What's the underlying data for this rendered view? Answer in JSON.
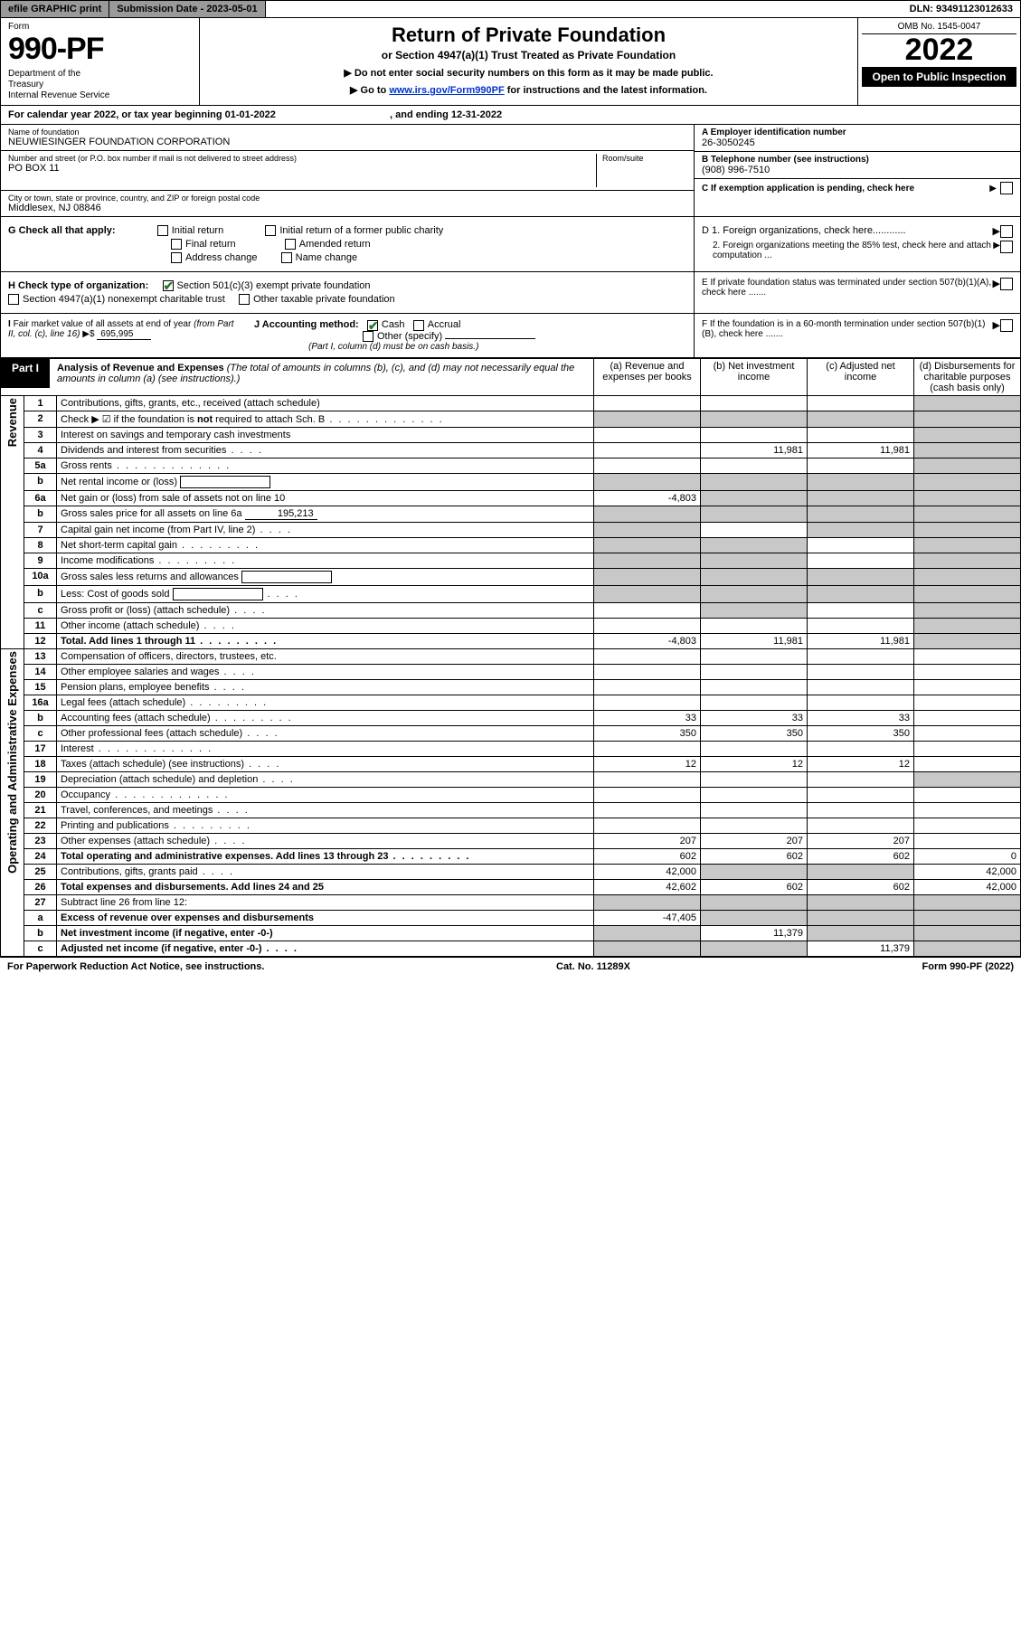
{
  "topbar": {
    "efile": "efile GRAPHIC print",
    "sub_label": "Submission Date - 2023-05-01",
    "dln": "DLN: 93491123012633"
  },
  "header": {
    "form_word": "Form",
    "form_no": "990-PF",
    "dept": "Department of the Treasury\nInternal Revenue Service",
    "title": "Return of Private Foundation",
    "subtitle": "or Section 4947(a)(1) Trust Treated as Private Foundation",
    "instr1": "▶ Do not enter social security numbers on this form as it may be made public.",
    "instr2_pre": "▶ Go to ",
    "instr2_link": "www.irs.gov/Form990PF",
    "instr2_post": " for instructions and the latest information.",
    "omb": "OMB No. 1545-0047",
    "year": "2022",
    "open": "Open to Public Inspection"
  },
  "calyear": {
    "text_a": "For calendar year 2022, or tax year beginning 01-01-2022",
    "text_b": ", and ending 12-31-2022"
  },
  "ident": {
    "name_lbl": "Name of foundation",
    "name_val": "NEUWIESINGER FOUNDATION CORPORATION",
    "addr_lbl": "Number and street (or P.O. box number if mail is not delivered to street address)",
    "addr_val": "PO BOX 11",
    "room_lbl": "Room/suite",
    "city_lbl": "City or town, state or province, country, and ZIP or foreign postal code",
    "city_val": "Middlesex, NJ  08846",
    "a_lbl": "A Employer identification number",
    "a_val": "26-3050245",
    "b_lbl": "B Telephone number (see instructions)",
    "b_val": "(908) 996-7510",
    "c_lbl": "C If exemption application is pending, check here"
  },
  "g": {
    "label": "G Check all that apply:",
    "opts": [
      "Initial return",
      "Final return",
      "Address change",
      "Initial return of a former public charity",
      "Amended return",
      "Name change"
    ]
  },
  "d": {
    "d1": "D 1. Foreign organizations, check here............",
    "d2": "2. Foreign organizations meeting the 85% test, check here and attach computation ...",
    "e": "E  If private foundation status was terminated under section 507(b)(1)(A), check here .......",
    "f": "F  If the foundation is in a 60-month termination under section 507(b)(1)(B), check here ......."
  },
  "h": {
    "label": "H Check type of organization:",
    "o1": "Section 501(c)(3) exempt private foundation",
    "o2": "Section 4947(a)(1) nonexempt charitable trust",
    "o3": "Other taxable private foundation"
  },
  "i": {
    "label": "I Fair market value of all assets at end of year (from Part II, col. (c), line 16)",
    "arrow": "▶$",
    "val": "695,995"
  },
  "j": {
    "label": "J Accounting method:",
    "cash": "Cash",
    "accr": "Accrual",
    "other": "Other (specify)",
    "note": "(Part I, column (d) must be on cash basis.)"
  },
  "part1": {
    "head": "Part I",
    "title": "Analysis of Revenue and Expenses",
    "title_note": " (The total of amounts in columns (b), (c), and (d) may not necessarily equal the amounts in column (a) (see instructions).)",
    "col_a": "(a)  Revenue and expenses per books",
    "col_b": "(b)  Net investment income",
    "col_c": "(c)  Adjusted net income",
    "col_d": "(d)  Disbursements for charitable purposes (cash basis only)"
  },
  "side": {
    "rev": "Revenue",
    "exp": "Operating and Administrative Expenses"
  },
  "rows": [
    {
      "n": "1",
      "d": "Contributions, gifts, grants, etc., received (attach schedule)",
      "a": "",
      "b": "",
      "c": "",
      "dd": "",
      "shade_d": true
    },
    {
      "n": "2",
      "d": "Check ▶ ☑ if the foundation is not required to attach Sch. B",
      "a": "",
      "b": "",
      "c": "",
      "dd": "",
      "shade_all": true,
      "bold_not": true,
      "dots": "l"
    },
    {
      "n": "3",
      "d": "Interest on savings and temporary cash investments",
      "a": "",
      "b": "",
      "c": "",
      "dd": "",
      "shade_d": true
    },
    {
      "n": "4",
      "d": "Dividends and interest from securities",
      "a": "",
      "b": "11,981",
      "c": "11,981",
      "dd": "",
      "shade_d": true,
      "dots": "s"
    },
    {
      "n": "5a",
      "d": "Gross rents",
      "a": "",
      "b": "",
      "c": "",
      "dd": "",
      "shade_d": true,
      "dots": "l"
    },
    {
      "n": "b",
      "d": "Net rental income or (loss)",
      "a": "",
      "b": "",
      "c": "",
      "dd": "",
      "shade_all": true,
      "inline_box": true
    },
    {
      "n": "6a",
      "d": "Net gain or (loss) from sale of assets not on line 10",
      "a": "-4,803",
      "b": "",
      "c": "",
      "dd": "",
      "shade_bcd": true
    },
    {
      "n": "b",
      "d": "Gross sales price for all assets on line 6a",
      "a": "",
      "b": "",
      "c": "",
      "dd": "",
      "shade_all": true,
      "inline_val": "195,213"
    },
    {
      "n": "7",
      "d": "Capital gain net income (from Part IV, line 2)",
      "a": "",
      "b": "",
      "c": "",
      "dd": "",
      "shade_a": true,
      "shade_cd": true,
      "dots": "s"
    },
    {
      "n": "8",
      "d": "Net short-term capital gain",
      "a": "",
      "b": "",
      "c": "",
      "dd": "",
      "shade_ab": true,
      "shade_d": true,
      "dots": "m"
    },
    {
      "n": "9",
      "d": "Income modifications",
      "a": "",
      "b": "",
      "c": "",
      "dd": "",
      "shade_ab": true,
      "shade_d": true,
      "dots": "m"
    },
    {
      "n": "10a",
      "d": "Gross sales less returns and allowances",
      "a": "",
      "b": "",
      "c": "",
      "dd": "",
      "shade_all": true,
      "inline_box": true
    },
    {
      "n": "b",
      "d": "Less: Cost of goods sold",
      "a": "",
      "b": "",
      "c": "",
      "dd": "",
      "shade_all": true,
      "inline_box": true,
      "dots": "s"
    },
    {
      "n": "c",
      "d": "Gross profit or (loss) (attach schedule)",
      "a": "",
      "b": "",
      "c": "",
      "dd": "",
      "shade_bd": true,
      "dots": "s"
    },
    {
      "n": "11",
      "d": "Other income (attach schedule)",
      "a": "",
      "b": "",
      "c": "",
      "dd": "",
      "shade_d": true,
      "dots": "s"
    },
    {
      "n": "12",
      "d": "Total. Add lines 1 through 11",
      "a": "-4,803",
      "b": "11,981",
      "c": "11,981",
      "dd": "",
      "shade_d": true,
      "bold": true,
      "dots": "m"
    },
    {
      "n": "13",
      "d": "Compensation of officers, directors, trustees, etc.",
      "a": "",
      "b": "",
      "c": "",
      "dd": ""
    },
    {
      "n": "14",
      "d": "Other employee salaries and wages",
      "a": "",
      "b": "",
      "c": "",
      "dd": "",
      "dots": "s"
    },
    {
      "n": "15",
      "d": "Pension plans, employee benefits",
      "a": "",
      "b": "",
      "c": "",
      "dd": "",
      "dots": "s"
    },
    {
      "n": "16a",
      "d": "Legal fees (attach schedule)",
      "a": "",
      "b": "",
      "c": "",
      "dd": "",
      "dots": "m"
    },
    {
      "n": "b",
      "d": "Accounting fees (attach schedule)",
      "a": "33",
      "b": "33",
      "c": "33",
      "dd": "",
      "dots": "m"
    },
    {
      "n": "c",
      "d": "Other professional fees (attach schedule)",
      "a": "350",
      "b": "350",
      "c": "350",
      "dd": "",
      "dots": "s"
    },
    {
      "n": "17",
      "d": "Interest",
      "a": "",
      "b": "",
      "c": "",
      "dd": "",
      "dots": "l"
    },
    {
      "n": "18",
      "d": "Taxes (attach schedule) (see instructions)",
      "a": "12",
      "b": "12",
      "c": "12",
      "dd": "",
      "dots": "s"
    },
    {
      "n": "19",
      "d": "Depreciation (attach schedule) and depletion",
      "a": "",
      "b": "",
      "c": "",
      "dd": "",
      "shade_d": true,
      "dots": "s"
    },
    {
      "n": "20",
      "d": "Occupancy",
      "a": "",
      "b": "",
      "c": "",
      "dd": "",
      "dots": "l"
    },
    {
      "n": "21",
      "d": "Travel, conferences, and meetings",
      "a": "",
      "b": "",
      "c": "",
      "dd": "",
      "dots": "s"
    },
    {
      "n": "22",
      "d": "Printing and publications",
      "a": "",
      "b": "",
      "c": "",
      "dd": "",
      "dots": "m"
    },
    {
      "n": "23",
      "d": "Other expenses (attach schedule)",
      "a": "207",
      "b": "207",
      "c": "207",
      "dd": "",
      "dots": "s"
    },
    {
      "n": "24",
      "d": "Total operating and administrative expenses. Add lines 13 through 23",
      "a": "602",
      "b": "602",
      "c": "602",
      "dd": "0",
      "bold": true,
      "dots": "m"
    },
    {
      "n": "25",
      "d": "Contributions, gifts, grants paid",
      "a": "42,000",
      "b": "",
      "c": "",
      "dd": "42,000",
      "shade_bc": true,
      "dots": "s"
    },
    {
      "n": "26",
      "d": "Total expenses and disbursements. Add lines 24 and 25",
      "a": "42,602",
      "b": "602",
      "c": "602",
      "dd": "42,000",
      "bold": true
    },
    {
      "n": "27",
      "d": "Subtract line 26 from line 12:",
      "a": "",
      "b": "",
      "c": "",
      "dd": "",
      "shade_all": true
    },
    {
      "n": "a",
      "d": "Excess of revenue over expenses and disbursements",
      "a": "-47,405",
      "b": "",
      "c": "",
      "dd": "",
      "shade_bcd": true,
      "bold": true
    },
    {
      "n": "b",
      "d": "Net investment income (if negative, enter -0-)",
      "a": "",
      "b": "11,379",
      "c": "",
      "dd": "",
      "shade_a": true,
      "shade_cd": true,
      "bold": true
    },
    {
      "n": "c",
      "d": "Adjusted net income (if negative, enter -0-)",
      "a": "",
      "b": "",
      "c": "11,379",
      "dd": "",
      "shade_ab": true,
      "shade_d": true,
      "bold": true,
      "dots": "s"
    }
  ],
  "footer": {
    "left": "For Paperwork Reduction Act Notice, see instructions.",
    "mid": "Cat. No. 11289X",
    "right": "Form 990-PF (2022)"
  },
  "colors": {
    "shade": "#c8c8c8",
    "link": "#0033cc",
    "check": "#2a7a2a"
  }
}
